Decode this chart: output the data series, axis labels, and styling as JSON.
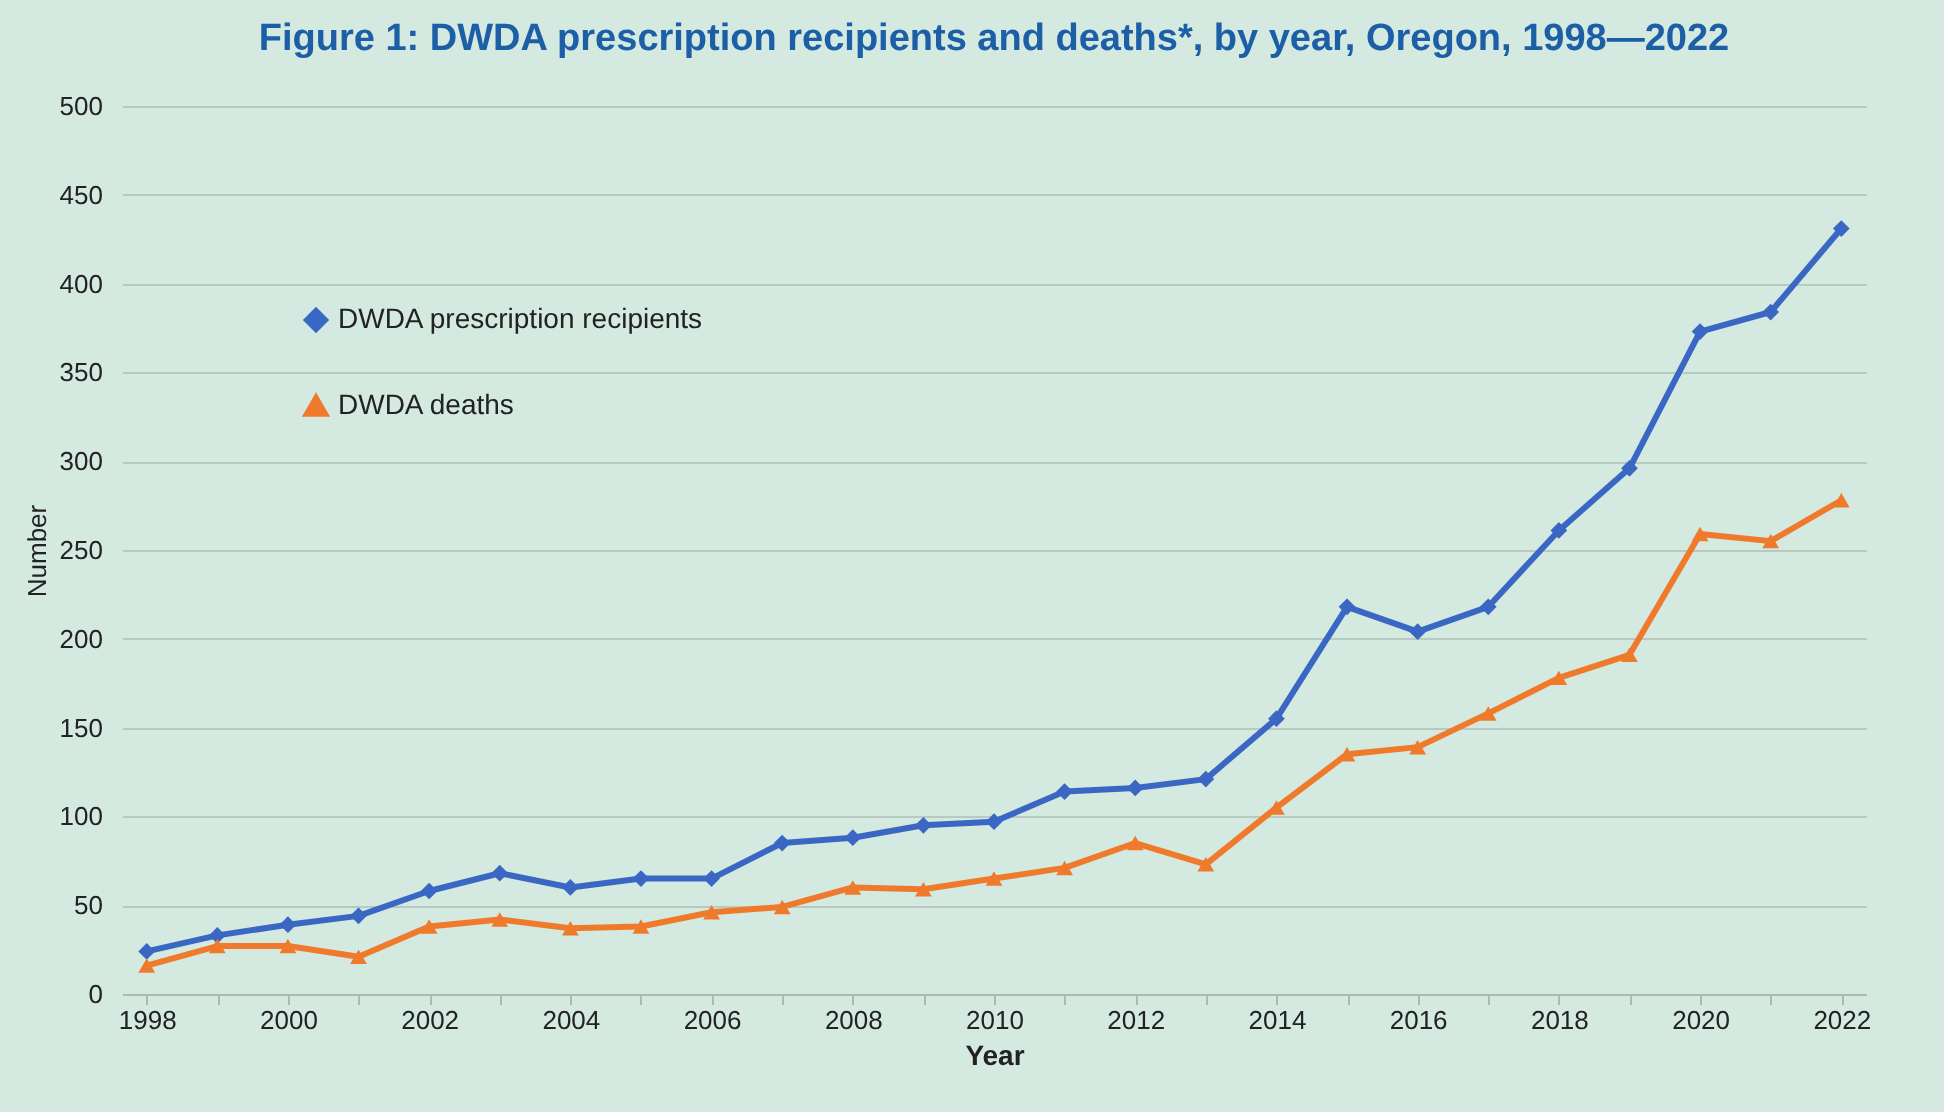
{
  "chart_data": {
    "type": "line",
    "title": "Figure 1: DWDA prescription recipients and deaths*, by year, Oregon, 1998—2022",
    "xlabel": "Year",
    "ylabel": "Number",
    "categories": [
      "1998",
      null,
      "2000",
      null,
      "2002",
      null,
      "2004",
      null,
      "2006",
      null,
      "2008",
      null,
      "2010",
      null,
      "2012",
      null,
      "2014",
      null,
      "2016",
      null,
      "2018",
      null,
      "2020",
      null,
      "2022"
    ],
    "series": [
      {
        "name": "DWDA prescription recipients",
        "color": "#3a67c4",
        "marker": "diamond",
        "values": [
          24,
          33,
          39,
          44,
          58,
          68,
          60,
          65,
          65,
          85,
          88,
          95,
          97,
          114,
          116,
          121,
          155,
          218,
          204,
          218,
          261,
          296,
          373,
          384,
          431
        ]
      },
      {
        "name": "DWDA deaths",
        "color": "#f07a2c",
        "marker": "triangle",
        "values": [
          16,
          27,
          27,
          21,
          38,
          42,
          37,
          38,
          46,
          49,
          60,
          59,
          65,
          71,
          85,
          73,
          105,
          135,
          139,
          158,
          178,
          191,
          259,
          255,
          278
        ]
      }
    ],
    "ylim": [
      0,
      500
    ],
    "yticks": [
      0,
      50,
      100,
      150,
      200,
      250,
      300,
      350,
      400,
      450,
      500
    ],
    "grid": "y",
    "legend": "top left",
    "line_style": "solid"
  }
}
